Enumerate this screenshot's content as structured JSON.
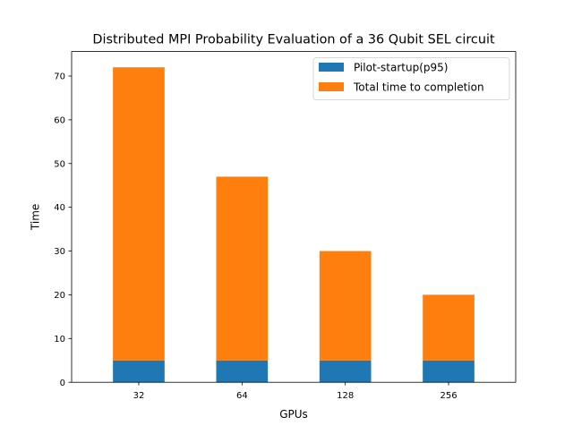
{
  "chart_data": {
    "type": "bar",
    "stacked": true,
    "title": "Distributed MPI Probability Evaluation of a 36 Qubit SEL circuit",
    "xlabel": "GPUs",
    "ylabel": "Time",
    "categories": [
      "32",
      "64",
      "128",
      "256"
    ],
    "series": [
      {
        "name": "Pilot-startup(p95)",
        "color": "#1f77b4",
        "values": [
          5,
          5,
          5,
          5
        ]
      },
      {
        "name": "Total time to completion",
        "color": "#ff7f0e",
        "values": [
          67,
          42,
          25,
          15
        ]
      }
    ],
    "ylim": [
      0,
      75.6
    ],
    "yticks": [
      0,
      10,
      20,
      30,
      40,
      50,
      60,
      70
    ],
    "grid": false,
    "legend_position": "top-right"
  }
}
